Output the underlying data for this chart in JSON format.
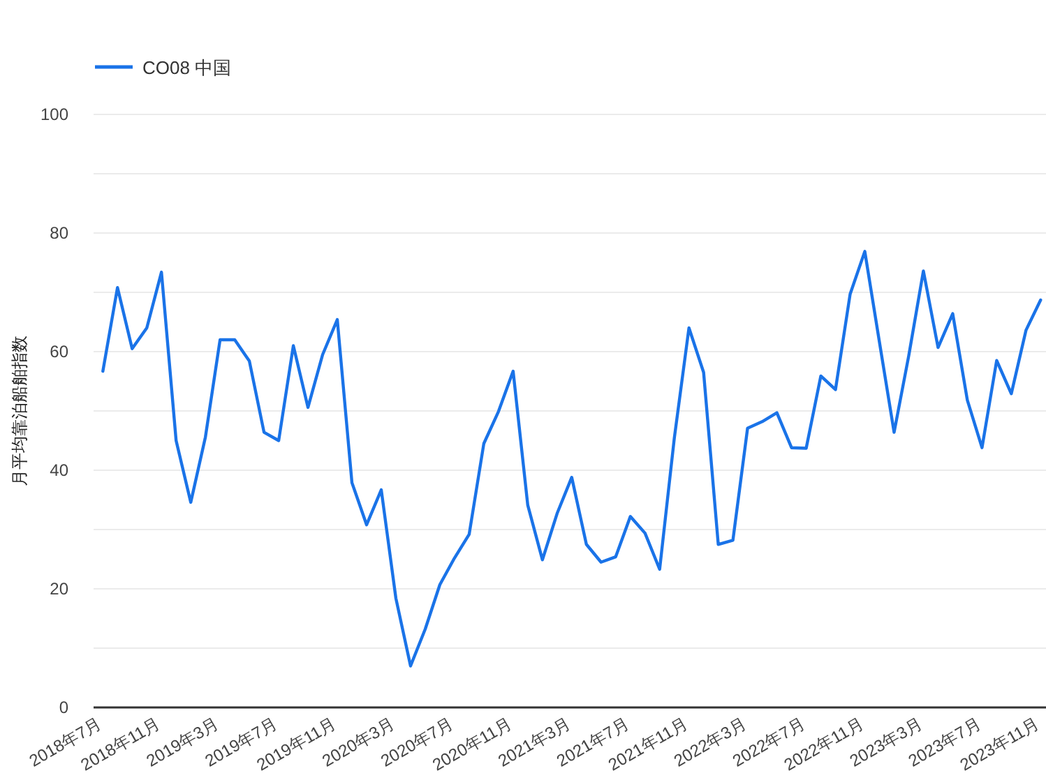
{
  "chart_data": {
    "type": "line",
    "ylabel": "月平均靠泊船舶指数",
    "x": [
      "2018-07",
      "2018-08",
      "2018-09",
      "2018-10",
      "2018-11",
      "2018-12",
      "2019-01",
      "2019-02",
      "2019-03",
      "2019-04",
      "2019-05",
      "2019-06",
      "2019-07",
      "2019-08",
      "2019-09",
      "2019-10",
      "2019-11",
      "2019-12",
      "2020-01",
      "2020-02",
      "2020-03",
      "2020-04",
      "2020-05",
      "2020-06",
      "2020-07",
      "2020-08",
      "2020-09",
      "2020-10",
      "2020-11",
      "2020-12",
      "2021-01",
      "2021-02",
      "2021-03",
      "2021-04",
      "2021-05",
      "2021-06",
      "2021-07",
      "2021-08",
      "2021-09",
      "2021-10",
      "2021-11",
      "2021-12",
      "2022-01",
      "2022-02",
      "2022-03",
      "2022-04",
      "2022-05",
      "2022-06",
      "2022-07",
      "2022-08",
      "2022-09",
      "2022-10",
      "2022-11",
      "2022-12",
      "2023-01",
      "2023-02",
      "2023-03",
      "2023-04",
      "2023-05",
      "2023-06",
      "2023-07",
      "2023-08",
      "2023-09",
      "2023-10",
      "2023-11"
    ],
    "series": [
      {
        "name": "CO08 中国",
        "color": "#1a73e8",
        "values": [
          56.7,
          70.8,
          60.5,
          64,
          73.4,
          45,
          34.6,
          45.6,
          62,
          62,
          58.4,
          46.4,
          45,
          61,
          50.6,
          59.5,
          65.4,
          37.9,
          30.8,
          36.7,
          18.4,
          7,
          13.2,
          20.7,
          25.2,
          29.2,
          44.5,
          49.9,
          56.7,
          34.1,
          24.9,
          32.7,
          38.8,
          27.5,
          24.5,
          25.4,
          32.2,
          29.4,
          23.3,
          45.4,
          64,
          56.5,
          27.5,
          28.2,
          47.1,
          48.2,
          49.7,
          43.8,
          43.7,
          55.9,
          53.6,
          69.7,
          76.9,
          61.6,
          46.4,
          59.3,
          73.6,
          60.7,
          66.4,
          51.8,
          43.8,
          58.5,
          52.9,
          63.6,
          68.7
        ]
      }
    ],
    "xlim": [
      "2018-06-12",
      "2023-11-12"
    ],
    "xticks": [
      {
        "value": "2018-07",
        "label": "2018年7月"
      },
      {
        "value": "2018-11",
        "label": "2018年11月"
      },
      {
        "value": "2019-03",
        "label": "2019年3月"
      },
      {
        "value": "2019-07",
        "label": "2019年7月"
      },
      {
        "value": "2019-11",
        "label": "2019年11月"
      },
      {
        "value": "2020-03",
        "label": "2020年3月"
      },
      {
        "value": "2020-07",
        "label": "2020年7月"
      },
      {
        "value": "2020-11",
        "label": "2020年11月"
      },
      {
        "value": "2021-03",
        "label": "2021年3月"
      },
      {
        "value": "2021-07",
        "label": "2021年7月"
      },
      {
        "value": "2021-11",
        "label": "2021年11月"
      },
      {
        "value": "2022-03",
        "label": "2022年3月"
      },
      {
        "value": "2022-07",
        "label": "2022年7月"
      },
      {
        "value": "2022-11",
        "label": "2022年11月"
      },
      {
        "value": "2023-03",
        "label": "2023年3月"
      },
      {
        "value": "2023-07",
        "label": "2023年7月"
      },
      {
        "value": "2023-11",
        "label": "2023年11月"
      }
    ],
    "ylim": [
      0,
      100
    ],
    "yticks": [
      0,
      {
        "value": 10,
        "label": null
      },
      20,
      {
        "value": 30,
        "label": null
      },
      40,
      {
        "value": 50,
        "label": null
      },
      60,
      {
        "value": 70,
        "label": null
      },
      80,
      {
        "value": 90,
        "label": null
      },
      100
    ],
    "grid": "y",
    "legend": "top left",
    "marker": "none",
    "line_style": "solid"
  }
}
